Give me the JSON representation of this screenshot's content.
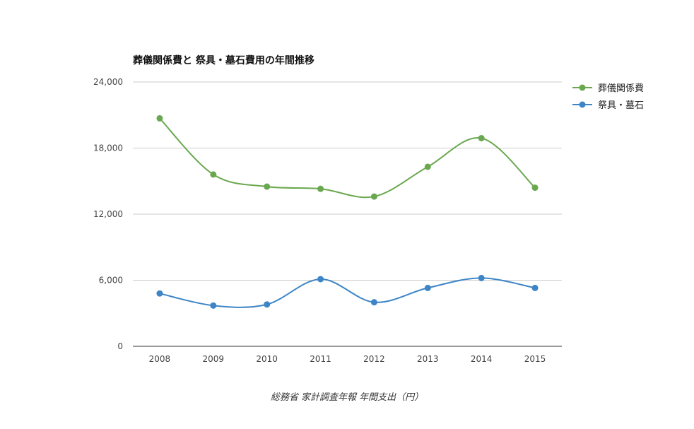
{
  "chart_data": {
    "type": "line",
    "title": "葬儀関係費と 祭具・墓石費用の年間推移",
    "xlabel": "",
    "ylabel": "",
    "x": [
      "2008",
      "2009",
      "2010",
      "2011",
      "2012",
      "2013",
      "2014",
      "2015"
    ],
    "ylim": [
      0,
      24000
    ],
    "yticks": [
      0,
      6000,
      12000,
      18000,
      24000
    ],
    "ytick_labels": [
      "0",
      "6,000",
      "12,000",
      "18,000",
      "24,000"
    ],
    "grid": true,
    "legend_position": "right",
    "series": [
      {
        "name": "葬儀関係費",
        "color": "#6aa84f",
        "values": [
          20700,
          15600,
          14500,
          14300,
          13600,
          16300,
          18900,
          14400
        ]
      },
      {
        "name": "祭具・墓石",
        "color": "#3d85c6",
        "values": [
          4800,
          3700,
          3800,
          6100,
          4000,
          5300,
          6200,
          5300
        ]
      }
    ],
    "footer": "総務省 家計調査年報 年間支出（円）"
  }
}
